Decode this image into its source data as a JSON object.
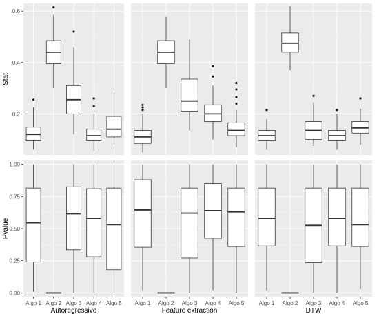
{
  "chart_data": {
    "type": "boxplot",
    "rows": [
      {
        "ylabel": "Stat",
        "ylim": [
          0.04,
          0.63
        ],
        "yticks": [
          0.2,
          0.4,
          0.6
        ]
      },
      {
        "ylabel": "Pvalue",
        "ylim": [
          -0.03,
          1.03
        ],
        "yticks": [
          0.0,
          0.25,
          0.5,
          0.75,
          1.0
        ]
      }
    ],
    "columns": [
      "Autoregressive",
      "Feature extraction",
      "DTW"
    ],
    "categories": [
      "Algo 1",
      "Algo 2",
      "Algo 3",
      "Algo 4",
      "Algo 5"
    ],
    "ytick_labels": {
      "stat": [
        "0.2",
        "0.4",
        "0.6"
      ],
      "pvalue": [
        "0.00",
        "0.25",
        "0.50",
        "0.75",
        "1.00"
      ]
    },
    "panels": [
      {
        "row": 0,
        "col": 0,
        "boxes": [
          {
            "category": "Algo 1",
            "min": 0.06,
            "q1": 0.095,
            "median": 0.12,
            "q3": 0.148,
            "max": 0.225,
            "outliers": [
              0.255
            ]
          },
          {
            "category": "Algo 2",
            "min": 0.3,
            "q1": 0.395,
            "median": 0.44,
            "q3": 0.485,
            "max": 0.585,
            "outliers": [
              0.615
            ]
          },
          {
            "category": "Algo 3",
            "min": 0.12,
            "q1": 0.2,
            "median": 0.255,
            "q3": 0.31,
            "max": 0.46,
            "outliers": [
              0.52
            ]
          },
          {
            "category": "Algo 4",
            "min": 0.055,
            "q1": 0.095,
            "median": 0.115,
            "q3": 0.14,
            "max": 0.2,
            "outliers": [
              0.23,
              0.26
            ]
          },
          {
            "category": "Algo 5",
            "min": 0.07,
            "q1": 0.11,
            "median": 0.14,
            "q3": 0.19,
            "max": 0.295,
            "outliers": []
          }
        ]
      },
      {
        "row": 0,
        "col": 1,
        "boxes": [
          {
            "category": "Algo 1",
            "min": 0.05,
            "q1": 0.085,
            "median": 0.11,
            "q3": 0.135,
            "max": 0.2,
            "outliers": [
              0.215,
              0.225,
              0.235
            ]
          },
          {
            "category": "Algo 2",
            "min": 0.3,
            "q1": 0.395,
            "median": 0.44,
            "q3": 0.485,
            "max": 0.58,
            "outliers": []
          },
          {
            "category": "Algo 3",
            "min": 0.135,
            "q1": 0.21,
            "median": 0.25,
            "q3": 0.335,
            "max": 0.49,
            "outliers": []
          },
          {
            "category": "Algo 4",
            "min": 0.1,
            "q1": 0.17,
            "median": 0.2,
            "q3": 0.235,
            "max": 0.31,
            "outliers": [
              0.345,
              0.385
            ]
          },
          {
            "category": "Algo 5",
            "min": 0.07,
            "q1": 0.115,
            "median": 0.135,
            "q3": 0.165,
            "max": 0.215,
            "outliers": [
              0.24,
              0.265,
              0.295,
              0.32
            ]
          }
        ]
      },
      {
        "row": 0,
        "col": 2,
        "boxes": [
          {
            "category": "Algo 1",
            "min": 0.06,
            "q1": 0.095,
            "median": 0.115,
            "q3": 0.135,
            "max": 0.18,
            "outliers": [
              0.215
            ]
          },
          {
            "category": "Algo 2",
            "min": 0.37,
            "q1": 0.44,
            "median": 0.475,
            "q3": 0.515,
            "max": 0.62,
            "outliers": []
          },
          {
            "category": "Algo 3",
            "min": 0.075,
            "q1": 0.1,
            "median": 0.135,
            "q3": 0.17,
            "max": 0.245,
            "outliers": [
              0.27
            ]
          },
          {
            "category": "Algo 4",
            "min": 0.06,
            "q1": 0.095,
            "median": 0.115,
            "q3": 0.135,
            "max": 0.2,
            "outliers": [
              0.215
            ]
          },
          {
            "category": "Algo 5",
            "min": 0.08,
            "q1": 0.125,
            "median": 0.145,
            "q3": 0.17,
            "max": 0.22,
            "outliers": [
              0.26
            ]
          }
        ]
      },
      {
        "row": 1,
        "col": 0,
        "boxes": [
          {
            "category": "Algo 1",
            "min": 0.01,
            "q1": 0.24,
            "median": 0.545,
            "q3": 0.815,
            "max": 1.0,
            "outliers": []
          },
          {
            "category": "Algo 2",
            "min": 0.0,
            "q1": 0.0,
            "median": 0.0,
            "q3": 0.002,
            "max": 0.004,
            "outliers": []
          },
          {
            "category": "Algo 3",
            "min": 0.0,
            "q1": 0.335,
            "median": 0.615,
            "q3": 0.825,
            "max": 1.0,
            "outliers": []
          },
          {
            "category": "Algo 4",
            "min": 0.0,
            "q1": 0.28,
            "median": 0.58,
            "q3": 0.81,
            "max": 1.0,
            "outliers": []
          },
          {
            "category": "Algo 5",
            "min": 0.0,
            "q1": 0.18,
            "median": 0.53,
            "q3": 0.815,
            "max": 1.0,
            "outliers": []
          }
        ]
      },
      {
        "row": 1,
        "col": 1,
        "boxes": [
          {
            "category": "Algo 1",
            "min": 0.02,
            "q1": 0.355,
            "median": 0.645,
            "q3": 0.88,
            "max": 1.0,
            "outliers": []
          },
          {
            "category": "Algo 2",
            "min": 0.0,
            "q1": 0.0,
            "median": 0.0,
            "q3": 0.002,
            "max": 0.004,
            "outliers": []
          },
          {
            "category": "Algo 3",
            "min": 0.0,
            "q1": 0.27,
            "median": 0.62,
            "q3": 0.815,
            "max": 1.0,
            "outliers": []
          },
          {
            "category": "Algo 4",
            "min": 0.02,
            "q1": 0.425,
            "median": 0.64,
            "q3": 0.85,
            "max": 1.0,
            "outliers": []
          },
          {
            "category": "Algo 5",
            "min": 0.0,
            "q1": 0.36,
            "median": 0.63,
            "q3": 0.815,
            "max": 1.0,
            "outliers": []
          }
        ]
      },
      {
        "row": 1,
        "col": 2,
        "boxes": [
          {
            "category": "Algo 1",
            "min": 0.02,
            "q1": 0.365,
            "median": 0.58,
            "q3": 0.815,
            "max": 1.0,
            "outliers": []
          },
          {
            "category": "Algo 2",
            "min": 0.0,
            "q1": 0.0,
            "median": 0.0,
            "q3": 0.002,
            "max": 0.004,
            "outliers": []
          },
          {
            "category": "Algo 3",
            "min": 0.0,
            "q1": 0.235,
            "median": 0.525,
            "q3": 0.815,
            "max": 1.0,
            "outliers": []
          },
          {
            "category": "Algo 4",
            "min": 0.0,
            "q1": 0.365,
            "median": 0.58,
            "q3": 0.815,
            "max": 1.0,
            "outliers": []
          },
          {
            "category": "Algo 5",
            "min": 0.03,
            "q1": 0.36,
            "median": 0.53,
            "q3": 0.815,
            "max": 1.0,
            "outliers": []
          }
        ]
      }
    ],
    "grid": true,
    "legend": "none"
  }
}
